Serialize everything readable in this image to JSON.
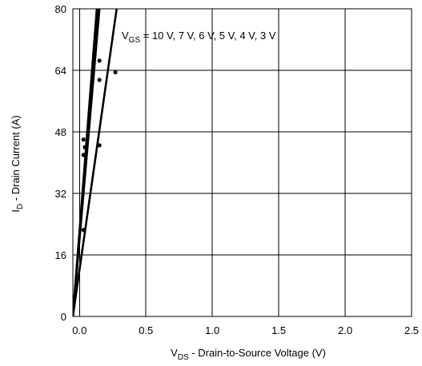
{
  "chart_data": {
    "type": "line",
    "xlabel": {
      "main": "V",
      "sub": "DS",
      "rest": " - Drain-to-Source Voltage (V)"
    },
    "ylabel": {
      "main": "I",
      "sub": "D",
      "rest": " - Drain Current (A)"
    },
    "annotation": {
      "main": "V",
      "sub": "GS",
      "rest": " = 10 V, 7 V, 6 V, 5 V, 4 V, 3 V"
    },
    "xlim": [
      -0.05,
      2.5
    ],
    "ylim": [
      0,
      80
    ],
    "x_ticks": [
      {
        "value": 0,
        "label": "0.0"
      },
      {
        "value": 0.5,
        "label": "0.5"
      },
      {
        "value": 1.0,
        "label": "1.0"
      },
      {
        "value": 1.5,
        "label": "1.5"
      },
      {
        "value": 2.0,
        "label": "2.0"
      },
      {
        "value": 2.5,
        "label": "2.5"
      }
    ],
    "y_ticks": [
      {
        "value": 0,
        "label": "0"
      },
      {
        "value": 16,
        "label": "16"
      },
      {
        "value": 32,
        "label": "32"
      },
      {
        "value": 48,
        "label": "48"
      },
      {
        "value": 64,
        "label": "64"
      },
      {
        "value": 80,
        "label": "80"
      }
    ],
    "grid": true,
    "series": [
      {
        "x": [
          -0.05,
          0.13
        ],
        "y": [
          0,
          80
        ]
      },
      {
        "x": [
          -0.05,
          0.135
        ],
        "y": [
          0,
          80
        ]
      },
      {
        "x": [
          -0.05,
          0.14
        ],
        "y": [
          0,
          80
        ]
      },
      {
        "x": [
          -0.05,
          0.145
        ],
        "y": [
          0,
          80
        ]
      },
      {
        "x": [
          -0.05,
          0.15
        ],
        "y": [
          0,
          80
        ]
      },
      {
        "x": [
          -0.05,
          0.28
        ],
        "y": [
          0,
          80
        ]
      }
    ],
    "markers": [
      {
        "x": 0.03,
        "y": 22.5
      },
      {
        "x": 0.03,
        "y": 42
      },
      {
        "x": 0.04,
        "y": 44
      },
      {
        "x": 0.03,
        "y": 46
      },
      {
        "x": 0.15,
        "y": 44.5
      },
      {
        "x": 0.15,
        "y": 61.5
      },
      {
        "x": 0.15,
        "y": 66.5
      },
      {
        "x": 0.27,
        "y": 63.5
      }
    ]
  }
}
